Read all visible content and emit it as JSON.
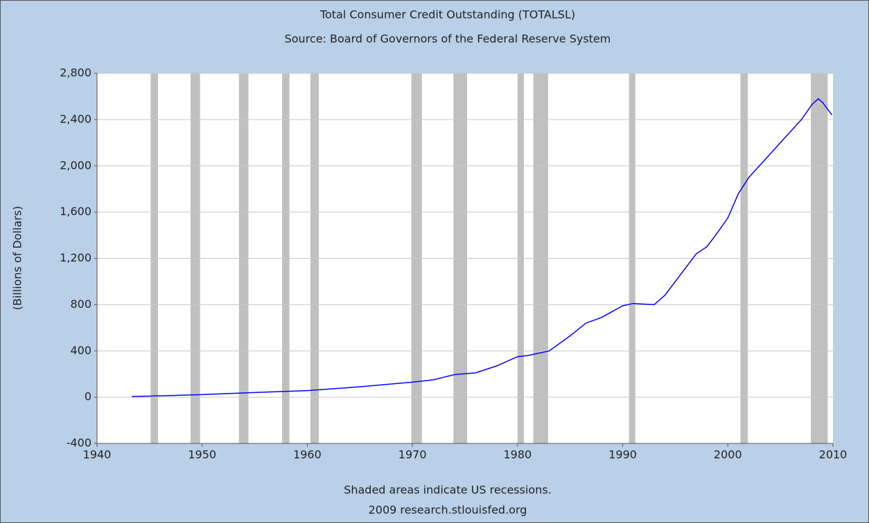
{
  "chart_data": {
    "type": "line",
    "title": "Total Consumer Credit Outstanding (TOTALSL)",
    "subtitle": "Source: Board of Governors of the Federal Reserve System",
    "y_label": "(Billions of Dollars)",
    "notes": [
      "Shaded areas indicate US recessions.",
      "2009 research.stlouisfed.org"
    ],
    "recessions": [
      [
        1945.1,
        1945.8
      ],
      [
        1948.9,
        1949.8
      ],
      [
        1953.5,
        1954.4
      ],
      [
        1957.6,
        1958.3
      ],
      [
        1960.3,
        1961.1
      ],
      [
        1969.9,
        1970.9
      ],
      [
        1973.9,
        1975.2
      ],
      [
        1980.0,
        1980.6
      ],
      [
        1981.5,
        1982.9
      ],
      [
        1990.6,
        1991.2
      ],
      [
        2001.2,
        2001.9
      ],
      [
        2007.9,
        2009.5
      ]
    ],
    "recession_color": "#c0c0c0",
    "x": [
      1943.3,
      1950,
      1955,
      1960,
      1965,
      1970,
      1972,
      1974,
      1976,
      1978,
      1980,
      1981,
      1983,
      1985,
      1986.5,
      1988,
      1990,
      1991,
      1993,
      1994,
      1996,
      1997,
      1998,
      1999,
      2000,
      2001,
      2002,
      2003,
      2004,
      2005,
      2006,
      2007,
      2008,
      2008.6,
      2009,
      2009.9
    ],
    "series": [
      {
        "name": "TOTALSL",
        "color": "#0000ff",
        "values": [
          5,
          22,
          40,
          57,
          90,
          130,
          150,
          195,
          210,
          270,
          350,
          360,
          400,
          530,
          640,
          690,
          790,
          810,
          800,
          880,
          1120,
          1240,
          1300,
          1420,
          1550,
          1760,
          1900,
          2000,
          2100,
          2200,
          2300,
          2400,
          2530,
          2580,
          2550,
          2440
        ]
      }
    ],
    "xlim": [
      1940,
      2010
    ],
    "xticks": [
      1940,
      1950,
      1960,
      1970,
      1980,
      1990,
      2000,
      2010
    ],
    "ylim": [
      -400,
      2800
    ],
    "yticks": [
      -400,
      0,
      400,
      800,
      {
        "value": 1200,
        "label": "1,200"
      },
      {
        "value": 1600,
        "label": "1,600"
      },
      {
        "value": 2000,
        "label": "2,000"
      },
      {
        "value": 2400,
        "label": "2,400"
      },
      {
        "value": 2800,
        "label": "2,800"
      }
    ],
    "grid": true
  }
}
